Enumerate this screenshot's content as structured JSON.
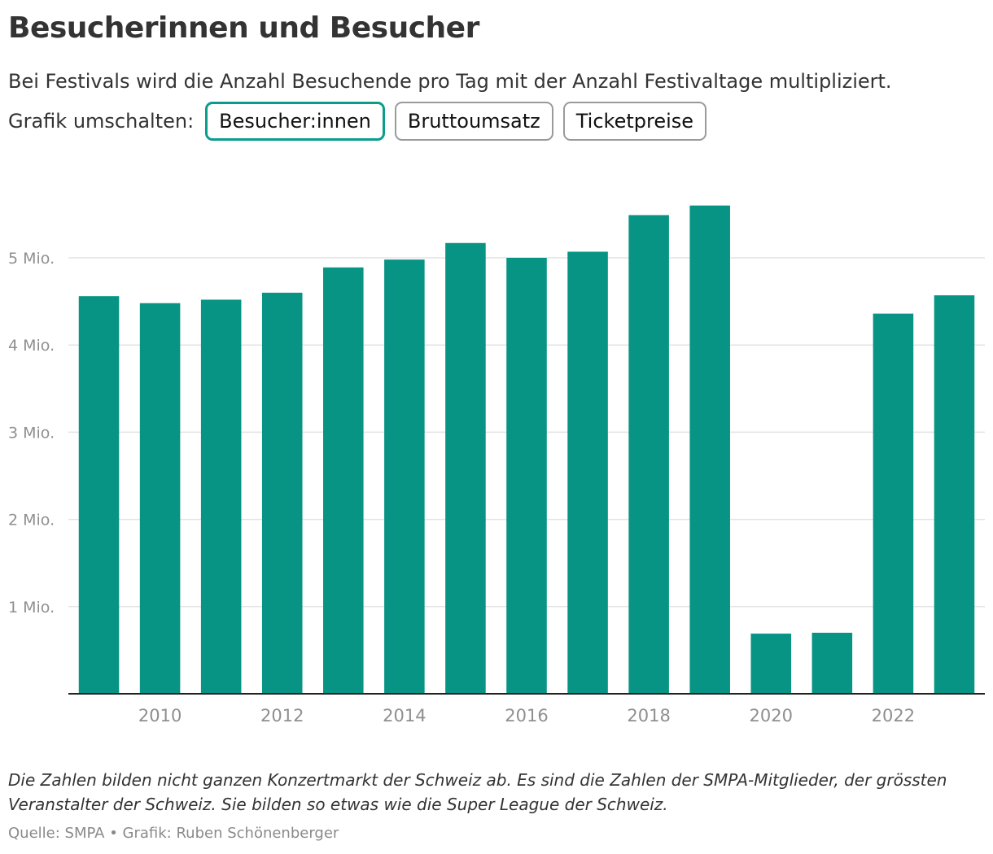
{
  "header": {
    "title": "Besucherinnen und Besucher",
    "subtitle": "Bei Festivals wird die Anzahl Besuchende pro Tag mit der Anzahl Festivaltage multipliziert."
  },
  "toggle": {
    "label": "Grafik umschalten:",
    "options": [
      "Besucher:innen",
      "Bruttoumsatz",
      "Ticketpreise"
    ],
    "selected": "Besucher:innen"
  },
  "chart_data": {
    "type": "bar",
    "title": "Besucherinnen und Besucher",
    "xlabel": "",
    "ylabel": "",
    "categories": [
      "2009",
      "2010",
      "2011",
      "2012",
      "2013",
      "2014",
      "2015",
      "2016",
      "2017",
      "2018",
      "2019",
      "2020",
      "2021",
      "2022",
      "2023"
    ],
    "values": [
      4560000,
      4480000,
      4520000,
      4600000,
      4890000,
      4980000,
      5170000,
      5000000,
      5070000,
      5490000,
      5600000,
      690000,
      700000,
      4360000,
      4570000
    ],
    "ylim": [
      0,
      6000000
    ],
    "yticks": [
      {
        "value": 1000000,
        "label": "1 Mio."
      },
      {
        "value": 2000000,
        "label": "2 Mio."
      },
      {
        "value": 3000000,
        "label": "3 Mio."
      },
      {
        "value": 4000000,
        "label": "4 Mio."
      },
      {
        "value": 5000000,
        "label": "5 Mio."
      }
    ],
    "xticks": [
      "2010",
      "2012",
      "2014",
      "2016",
      "2018",
      "2020",
      "2022"
    ],
    "grid": true,
    "bar_color": "#079484",
    "grid_color": "#e3e3e3",
    "axis_color": "#222222",
    "tick_label_color": "#8f8f8f"
  },
  "footer": {
    "note": "Die Zahlen bilden nicht ganzen Konzertmarkt der Schweiz ab. Es sind die Zahlen der SMPA-Mitglieder, der grössten Veranstalter der Schweiz. Sie bilden so etwas wie die Super League der Schweiz.",
    "source": "Quelle: SMPA • Grafik: Ruben Schönenberger"
  },
  "colors": {
    "accent": "#0a9d8c"
  }
}
